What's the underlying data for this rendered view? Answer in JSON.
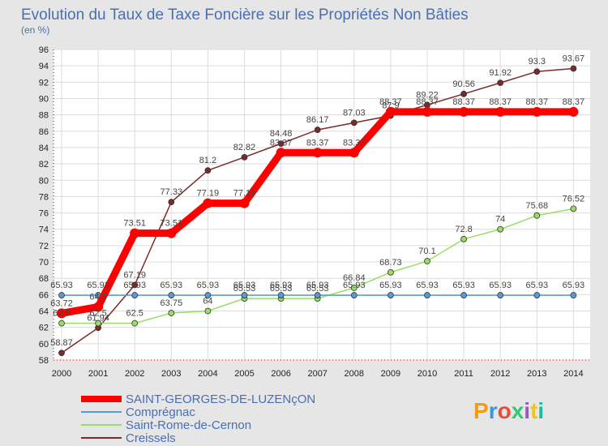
{
  "header": {
    "title": "Evolution du Taux de Taxe Foncière sur les Propriétés Non Bâties",
    "subtitle": "(en %)"
  },
  "logo": {
    "text": "Proxiti"
  },
  "chart_data": {
    "type": "line",
    "x": [
      "2000",
      "2001",
      "2002",
      "2003",
      "2004",
      "2005",
      "2006",
      "2007",
      "2008",
      "2009",
      "2010",
      "2011",
      "2012",
      "2013",
      "2014"
    ],
    "ylim": [
      58,
      96
    ],
    "yticks": [
      58,
      60,
      62,
      64,
      66,
      68,
      70,
      72,
      74,
      76,
      78,
      80,
      82,
      84,
      86,
      88,
      90,
      92,
      94,
      96
    ],
    "grid": true,
    "legend_position": "bottom-left",
    "series": [
      {
        "name": "SAINT-GEORGES-DE-LUZENçON",
        "color": "#ff0000",
        "values": [
          63.72,
          64.5,
          73.51,
          73.51,
          77.19,
          77.19,
          83.37,
          83.37,
          83.37,
          88.37,
          88.37,
          88.37,
          88.37,
          88.37,
          88.37
        ],
        "labels": [
          "63.72",
          "64.5",
          "73.51",
          "73.51",
          "77.19",
          "77.19",
          "83.37",
          "83.37",
          "83.37",
          "88.37",
          "88.37",
          "88.37",
          "88.37",
          "88.37",
          "88.37"
        ]
      },
      {
        "name": "Comprégnac",
        "color": "#5b9bd5",
        "values": [
          65.93,
          65.93,
          65.93,
          65.93,
          65.93,
          65.93,
          65.93,
          65.93,
          65.93,
          65.93,
          65.93,
          65.93,
          65.93,
          65.93,
          65.93
        ],
        "labels": [
          "65.93",
          "65.93",
          "65.93",
          "65.93",
          "65.93",
          "65.93",
          "65.93",
          "65.93",
          "65.93",
          "65.93",
          "65.93",
          "65.93",
          "65.93",
          "65.93",
          "65.93"
        ]
      },
      {
        "name": "Saint-Rome-de-Cernon",
        "color": "#99dd66",
        "values": [
          62.5,
          62.5,
          62.5,
          63.75,
          64,
          65.53,
          65.53,
          65.53,
          66.84,
          68.73,
          70.1,
          72.8,
          74,
          75.68,
          76.52
        ],
        "labels": [
          "62.5",
          "62.5",
          "62.5",
          "63.75",
          "64",
          "65.53",
          "65.53",
          "65.53",
          "66.84",
          "68.73",
          "70.1",
          "72.8",
          "74",
          "75.68",
          "76.52"
        ]
      },
      {
        "name": "Creissels",
        "color": "#7a2a2a",
        "values": [
          58.87,
          61.94,
          67.19,
          77.33,
          81.2,
          82.82,
          84.48,
          86.17,
          87.03,
          87.9,
          89.22,
          90.56,
          91.92,
          93.3,
          93.67
        ],
        "labels": [
          "58.87",
          "61.94",
          "67.19",
          "77.33",
          "81.2",
          "82.82",
          "84.48",
          "86.17",
          "87.03",
          "87.9",
          "89.22",
          "90.56",
          "91.92",
          "93.3",
          "93.67"
        ]
      }
    ]
  }
}
